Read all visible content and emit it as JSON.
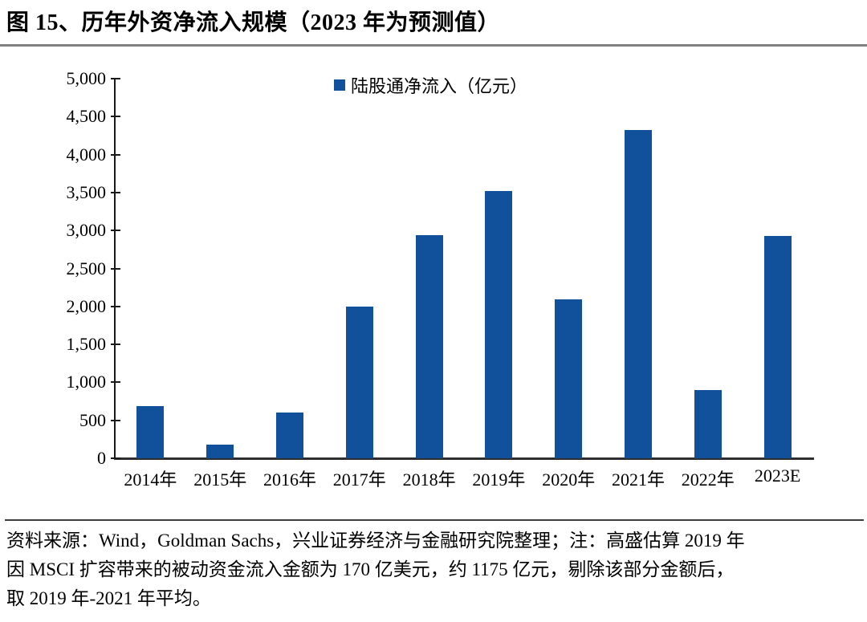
{
  "title": "图 15、历年外资净流入规模（2023 年为预测值）",
  "chart_data": {
    "type": "bar",
    "categories": [
      "2014年",
      "2015年",
      "2016年",
      "2017年",
      "2018年",
      "2019年",
      "2020年",
      "2021年",
      "2022年",
      "2023E"
    ],
    "values": [
      686,
      185,
      607,
      1997,
      2942,
      3517,
      2089,
      4322,
      900,
      2925
    ],
    "title": "图 15、历年外资净流入规模（2023 年为预测值）",
    "legend": "陆股通净流入（亿元）",
    "legend_position": "top-center",
    "xlabel": "",
    "ylabel": "",
    "ylim": [
      0,
      5000
    ],
    "ytick_interval": 500,
    "yticks": [
      "5,000",
      "4,500",
      "4,000",
      "3,500",
      "3,000",
      "2,500",
      "2,000",
      "1,500",
      "1,000",
      "500",
      "0"
    ],
    "bar_color": "#11519B",
    "grid": false
  },
  "footer": {
    "source_line1": "资料来源：Wind，Goldman Sachs，兴业证券经济与金融研究院整理；注：高盛估算 2019 年",
    "source_line2": "因 MSCI 扩容带来的被动资金流入金额为 170 亿美元，约 1175 亿元，剔除该部分金额后，",
    "source_line3": "取 2019 年-2021 年平均。"
  }
}
